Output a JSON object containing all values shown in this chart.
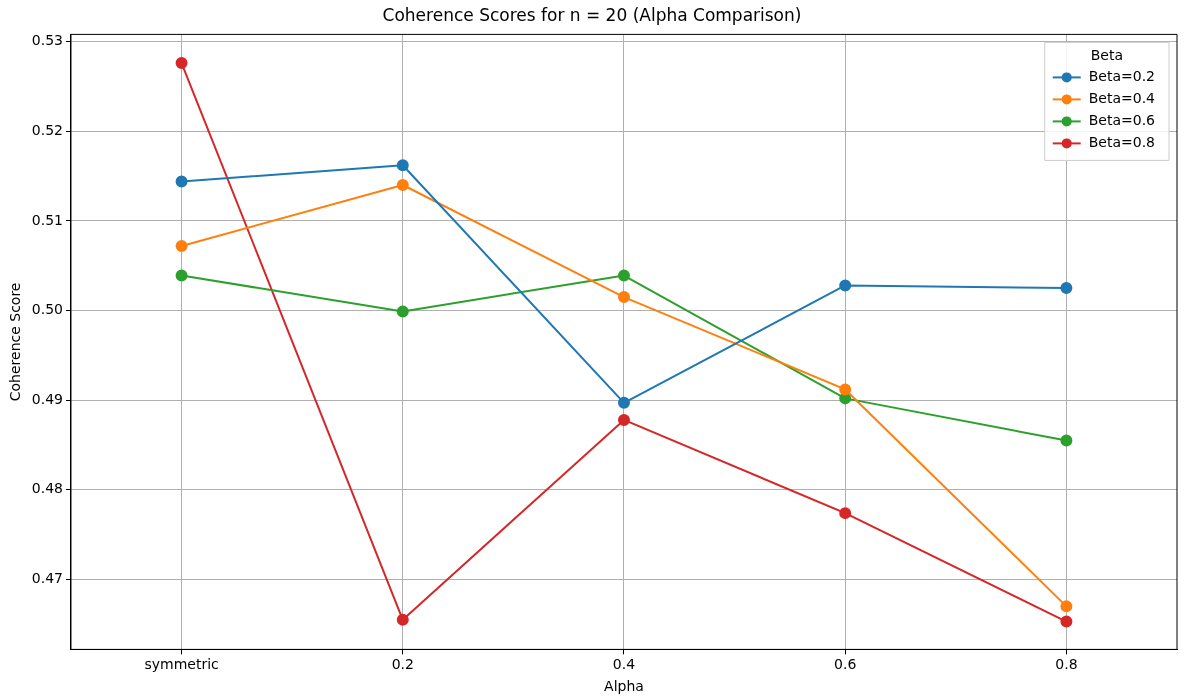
{
  "chart_data": {
    "type": "line",
    "title": "Coherence Scores for n = 20 (Alpha Comparison)",
    "xlabel": "Alpha",
    "ylabel": "Coherence Score",
    "legend_title": "Beta",
    "categories": [
      "symmetric",
      "0.2",
      "0.4",
      "0.6",
      "0.8"
    ],
    "series": [
      {
        "name": "Beta=0.2",
        "color": "#1f77b4",
        "values": [
          0.5144,
          0.5162,
          0.4897,
          0.5028,
          0.5025
        ]
      },
      {
        "name": "Beta=0.4",
        "color": "#ff7f0e",
        "values": [
          0.5072,
          0.514,
          0.5015,
          0.4912,
          0.467
        ]
      },
      {
        "name": "Beta=0.6",
        "color": "#2ca02c",
        "values": [
          0.5039,
          0.4999,
          0.5039,
          0.4902,
          0.4855
        ]
      },
      {
        "name": "Beta=0.8",
        "color": "#d62728",
        "values": [
          0.5276,
          0.4655,
          0.4878,
          0.4774,
          0.4653
        ]
      }
    ],
    "ylim": [
      0.4622,
      0.5308
    ],
    "yticks": [
      0.47,
      0.48,
      0.49,
      {
        "value": 0.5,
        "label": "0.50"
      },
      0.51,
      0.52,
      0.53
    ],
    "grid": true,
    "legend": "top right",
    "marker": "circle",
    "line_style": "solid"
  }
}
